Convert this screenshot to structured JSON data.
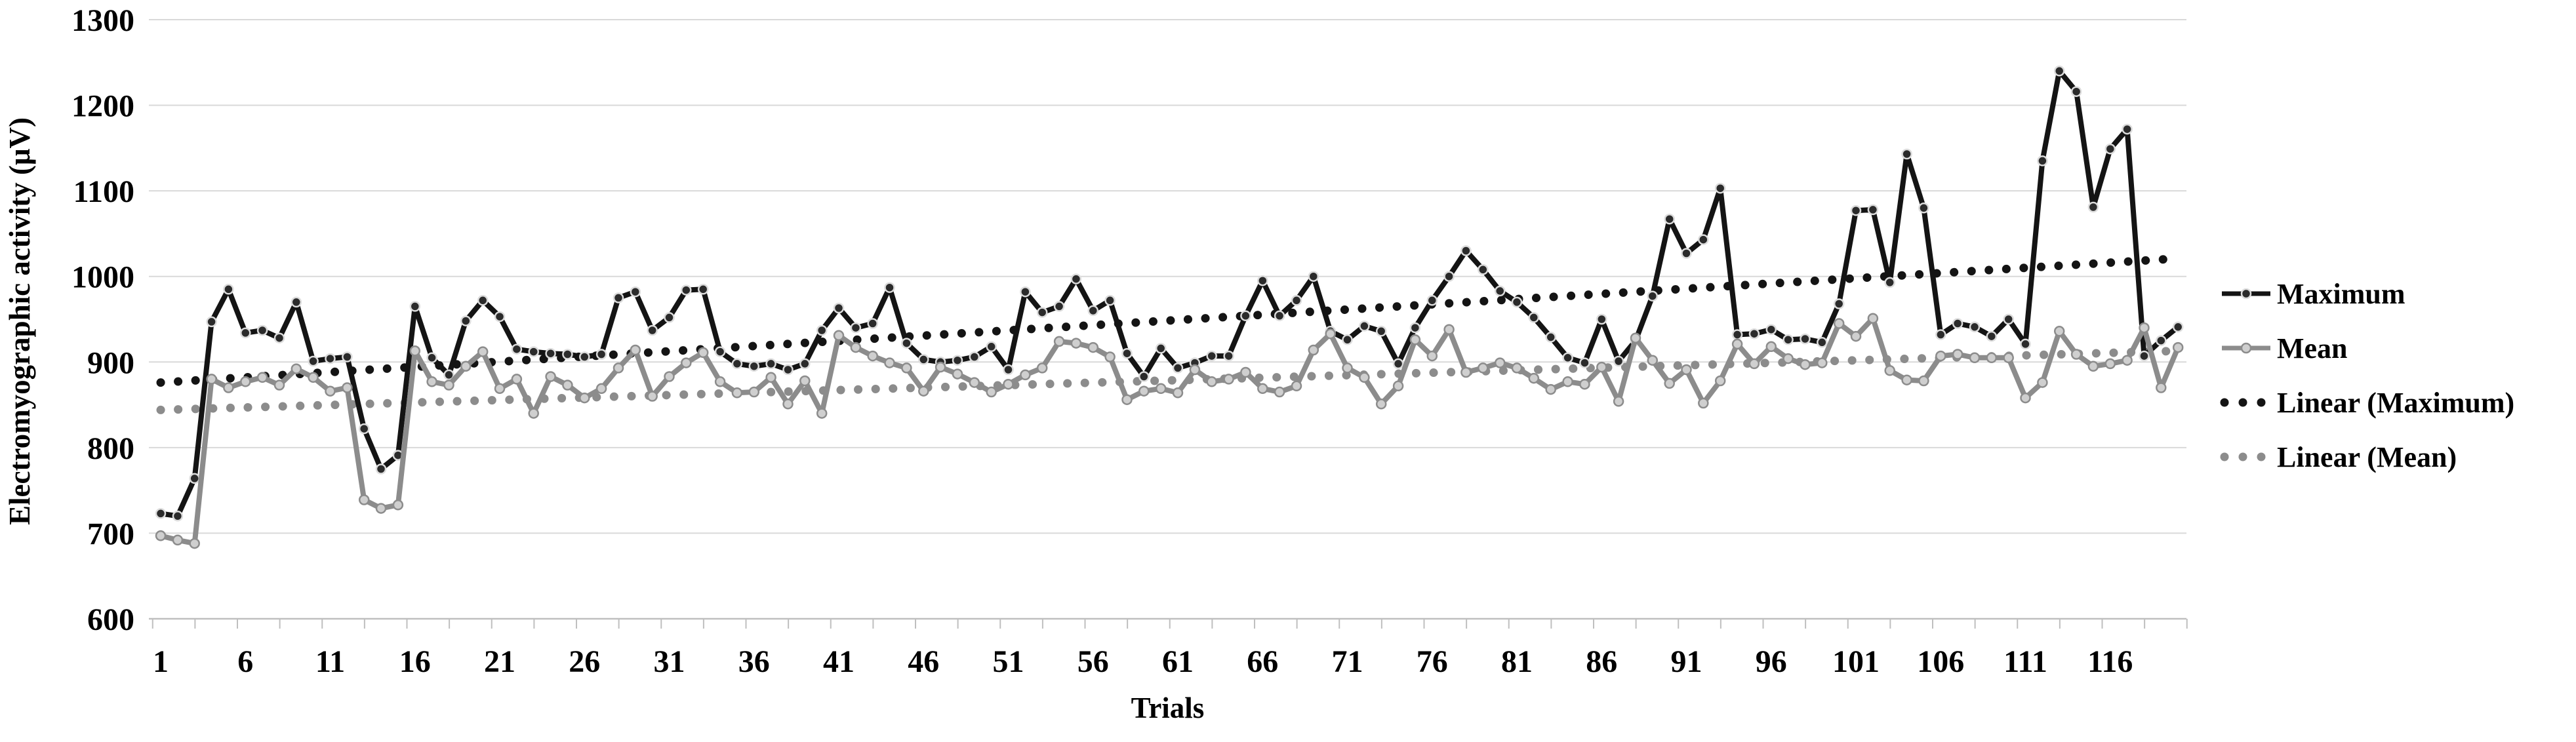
{
  "chart": {
    "y_axis": {
      "label": "Electromyographic activity (μV)",
      "ticks": [
        "1300",
        "1200",
        "1100",
        "1000",
        "900",
        "800",
        "700",
        "600"
      ],
      "min": 600,
      "max": 1300
    },
    "x_axis": {
      "label": "Trials",
      "tick_labels": [
        "1",
        "6",
        "11",
        "16",
        "21",
        "26",
        "31",
        "36",
        "41",
        "46",
        "51",
        "56",
        "61",
        "66",
        "71",
        "76",
        "81",
        "86",
        "91",
        "96",
        "101",
        "106",
        "111",
        "116"
      ]
    },
    "legend": [
      {
        "label": "Maximum",
        "style": "solid-line-marker",
        "color": "#141414"
      },
      {
        "label": "Mean",
        "style": "solid-line-marker",
        "color": "#8c8c8c"
      },
      {
        "label": "Linear (Maximum)",
        "style": "dotted-line",
        "color": "#141414"
      },
      {
        "label": "Linear (Mean)",
        "style": "dotted-line",
        "color": "#8c8c8c"
      }
    ],
    "colors": {
      "grid": "#d9d9d9",
      "axis": "#bfbfbf",
      "background": "#ffffff",
      "series_maximum": "#141414",
      "series_mean": "#8c8c8c"
    }
  },
  "chart_data": {
    "type": "line",
    "title": "",
    "xlabel": "Trials",
    "ylabel": "Electromyographic activity (μV)",
    "x_start": 1,
    "x_step": 1,
    "x_count": 120,
    "ylim": [
      600,
      1300
    ],
    "grid": true,
    "legend_position": "right",
    "series": [
      {
        "name": "Maximum",
        "color": "#141414",
        "marker": "circle",
        "values": [
          723,
          720,
          764,
          947,
          985,
          934,
          937,
          928,
          970,
          901,
          904,
          906,
          822,
          775,
          791,
          965,
          905,
          885,
          948,
          972,
          953,
          915,
          912,
          910,
          909,
          906,
          909,
          975,
          982,
          937,
          952,
          984,
          985,
          912,
          898,
          895,
          898,
          891,
          898,
          937,
          963,
          940,
          945,
          987,
          922,
          903,
          900,
          902,
          906,
          918,
          891,
          982,
          958,
          965,
          997,
          960,
          972,
          910,
          883,
          916,
          893,
          899,
          907,
          907,
          954,
          995,
          954,
          972,
          1000,
          936,
          926,
          942,
          936,
          898,
          940,
          972,
          1000,
          1030,
          1008,
          983,
          970,
          952,
          929,
          905,
          899,
          950,
          901,
          925,
          977,
          1067,
          1027,
          1043,
          1103,
          932,
          933,
          938,
          926,
          927,
          923,
          968,
          1077,
          1078,
          993,
          1143,
          1080,
          932,
          945,
          941,
          930,
          950,
          921,
          1135,
          1240,
          1216,
          1081,
          1149,
          1172,
          907,
          925,
          941
        ]
      },
      {
        "name": "Mean",
        "color": "#8c8c8c",
        "marker": "circle",
        "values": [
          697,
          692,
          688,
          880,
          870,
          877,
          882,
          873,
          892,
          882,
          866,
          870,
          739,
          729,
          733,
          913,
          877,
          873,
          895,
          912,
          869,
          880,
          840,
          883,
          873,
          858,
          869,
          893,
          914,
          860,
          883,
          899,
          911,
          877,
          864,
          865,
          882,
          851,
          878,
          840,
          931,
          917,
          907,
          899,
          893,
          866,
          894,
          886,
          876,
          865,
          874,
          885,
          893,
          924,
          922,
          917,
          906,
          856,
          866,
          869,
          864,
          891,
          877,
          880,
          888,
          869,
          865,
          872,
          914,
          933,
          893,
          882,
          851,
          872,
          926,
          907,
          938,
          888,
          893,
          899,
          893,
          881,
          868,
          877,
          874,
          894,
          854,
          928,
          902,
          875,
          891,
          852,
          878,
          921,
          898,
          918,
          904,
          897,
          899,
          945,
          930,
          951,
          890,
          879,
          878,
          907,
          909,
          905,
          905,
          905,
          858,
          876,
          936,
          909,
          895,
          898,
          902,
          940,
          870,
          917
        ]
      }
    ],
    "trendlines": [
      {
        "name": "Linear (Maximum)",
        "color": "#141414",
        "start_value": 876,
        "end_value": 1021
      },
      {
        "name": "Linear (Mean)",
        "color": "#8c8c8c",
        "start_value": 844,
        "end_value": 913
      }
    ]
  }
}
